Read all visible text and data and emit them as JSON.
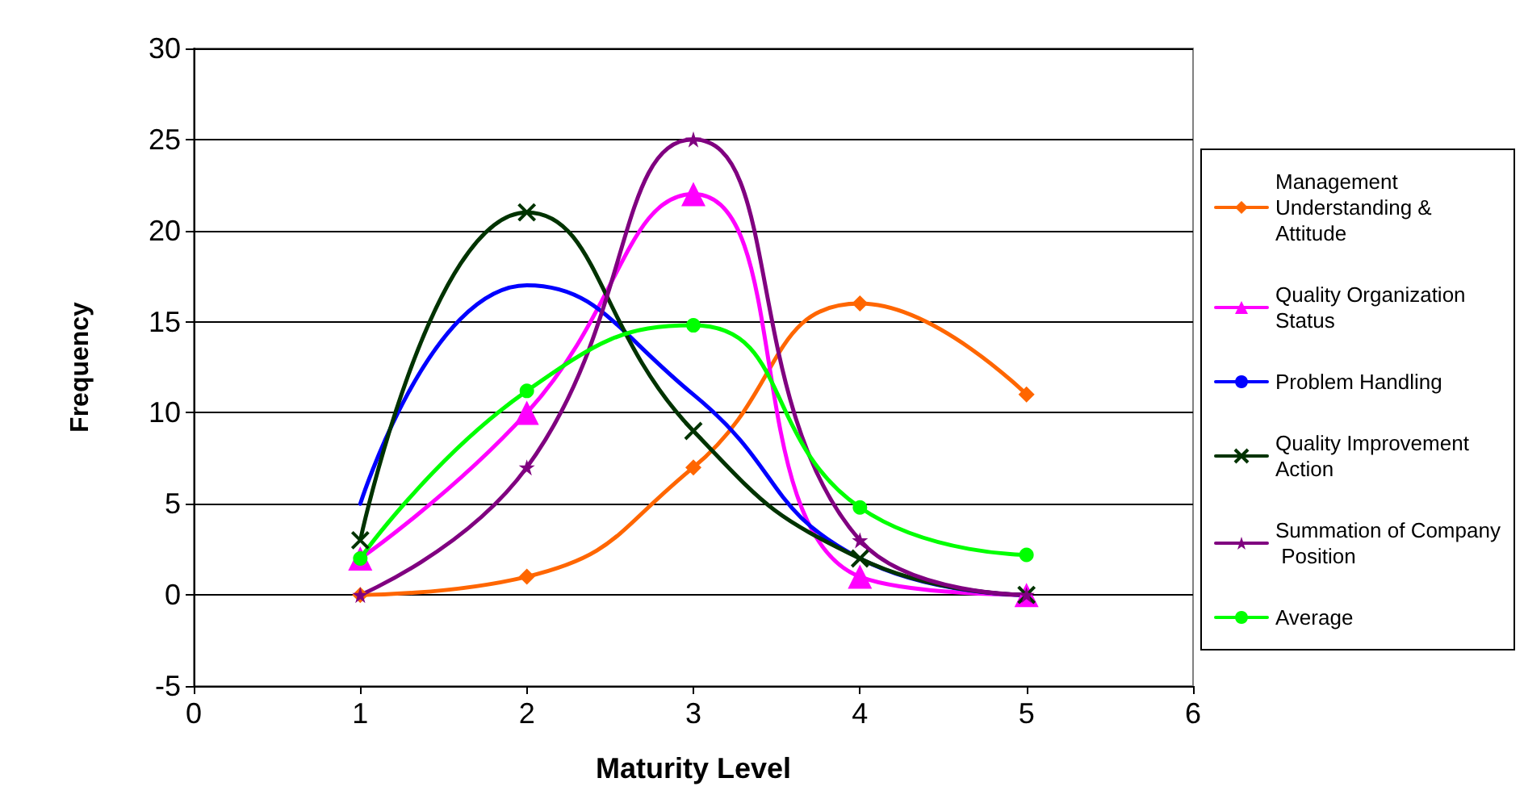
{
  "chart_data": {
    "type": "line",
    "xlabel": "Maturity Level",
    "ylabel": "Frequency",
    "x": [
      1,
      2,
      3,
      4,
      5
    ],
    "xlim": [
      0,
      6
    ],
    "xticks": [
      0,
      1,
      2,
      3,
      4,
      5,
      6
    ],
    "ylim": [
      -5,
      30
    ],
    "yticks": [
      -5,
      0,
      5,
      10,
      15,
      20,
      25,
      30
    ],
    "grid": "y",
    "legend": "right",
    "series": [
      {
        "name": "Management Understanding & Attitude",
        "color": "#ff6600",
        "marker": "diamond",
        "values": [
          0,
          1,
          7,
          16,
          11
        ]
      },
      {
        "name": "Quality Organization Status",
        "color": "#ff00ff",
        "marker": "triangle",
        "values": [
          2,
          10,
          22,
          1,
          0
        ]
      },
      {
        "name": "Problem Handling",
        "color": "#0000ff",
        "marker": "none",
        "values": [
          5,
          17,
          11,
          2,
          0
        ]
      },
      {
        "name": "Quality Improvement Action",
        "color": "#003300",
        "marker": "cross",
        "values": [
          3,
          21,
          9,
          2,
          0
        ]
      },
      {
        "name": "Summation of Company Position",
        "color": "#800080",
        "marker": "star",
        "values": [
          0,
          7,
          25,
          3,
          0
        ]
      },
      {
        "name": "Average",
        "color": "#00ff00",
        "marker": "circle",
        "values": [
          2,
          11.2,
          14.8,
          4.8,
          2.2
        ]
      }
    ]
  }
}
